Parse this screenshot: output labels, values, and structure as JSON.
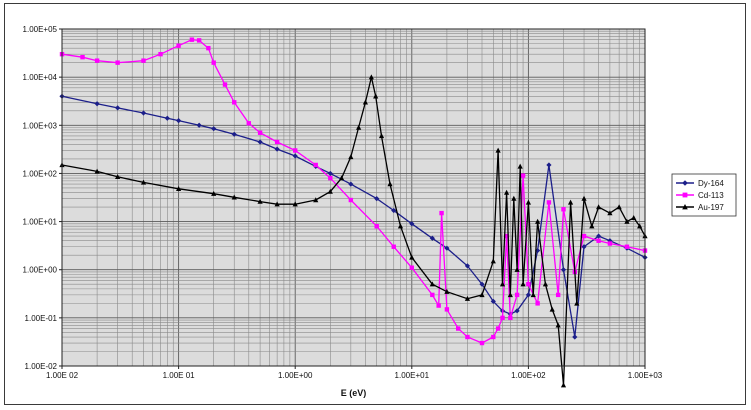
{
  "chart_data": {
    "type": "line",
    "title": "",
    "xlabel": "E (eV)",
    "ylabel": "",
    "x_scale": "log",
    "y_scale": "log",
    "xlim": [
      0.01,
      1000
    ],
    "ylim": [
      0.01,
      100000
    ],
    "grid": true,
    "legend_position": "right",
    "x_ticks": [
      "1.00E 02",
      "1.00E 01",
      "1.00E+00",
      "1.00E+01",
      "1.00E+02",
      "1.00E+03"
    ],
    "y_ticks": [
      "1.00E-02",
      "1.00E-01",
      "1.00E+00",
      "1.00E+01",
      "1.00E+02",
      "1.00E+03",
      "1.00E+04",
      "1.00E+05"
    ],
    "series": [
      {
        "name": "Dy-164",
        "color": "#1c1f8a",
        "marker": "diamond",
        "x": [
          0.01,
          0.02,
          0.03,
          0.05,
          0.08,
          0.1,
          0.15,
          0.2,
          0.3,
          0.5,
          0.7,
          1.0,
          1.5,
          2.0,
          3.0,
          5.0,
          7.0,
          10.0,
          15.0,
          20.0,
          30.0,
          40.0,
          50.0,
          60.0,
          70.0,
          80.0,
          100.0,
          120.0,
          150.0,
          200.0,
          250.0,
          300.0,
          400.0,
          500.0,
          700.0,
          1000.0
        ],
        "y": [
          4000,
          2800,
          2300,
          1800,
          1400,
          1250,
          1000,
          850,
          650,
          450,
          320,
          230,
          140,
          100,
          60,
          30,
          17,
          9,
          4.5,
          2.8,
          1.2,
          0.5,
          0.22,
          0.14,
          0.12,
          0.14,
          0.3,
          2.5,
          150,
          1.0,
          0.04,
          3.0,
          5.0,
          4.0,
          2.8,
          1.8
        ]
      },
      {
        "name": "Cd-113",
        "color": "#ff00ff",
        "marker": "square",
        "x": [
          0.01,
          0.015,
          0.02,
          0.03,
          0.05,
          0.07,
          0.1,
          0.13,
          0.15,
          0.18,
          0.2,
          0.25,
          0.3,
          0.4,
          0.5,
          0.7,
          1.0,
          1.5,
          2.0,
          3.0,
          5.0,
          7.0,
          10.0,
          15.0,
          17.0,
          18.0,
          20.0,
          25.0,
          30.0,
          40.0,
          50.0,
          55.0,
          60.0,
          65.0,
          70.0,
          80.0,
          90.0,
          100.0,
          120.0,
          150.0,
          180.0,
          200.0,
          250.0,
          300.0,
          400.0,
          500.0,
          700.0,
          1000.0
        ],
        "y": [
          30000,
          26000,
          22000,
          20000,
          22000,
          30000,
          45000,
          60000,
          58000,
          40000,
          20000,
          7000,
          3000,
          1100,
          700,
          450,
          300,
          150,
          80,
          28,
          8,
          3,
          1.1,
          0.3,
          0.18,
          15,
          0.15,
          0.06,
          0.04,
          0.03,
          0.04,
          0.06,
          0.1,
          5,
          0.1,
          0.3,
          90,
          0.5,
          0.2,
          25,
          0.3,
          18,
          0.9,
          5.0,
          4.0,
          3.5,
          3.0,
          2.5
        ]
      },
      {
        "name": "Au-197",
        "color": "#000000",
        "marker": "triangle",
        "x": [
          0.01,
          0.02,
          0.03,
          0.05,
          0.1,
          0.2,
          0.3,
          0.5,
          0.7,
          1.0,
          1.5,
          2.0,
          2.5,
          3.0,
          3.5,
          4.0,
          4.5,
          4.9,
          5.5,
          6.5,
          8.0,
          10.0,
          15.0,
          20.0,
          30.0,
          40.0,
          50.0,
          55.0,
          60.0,
          65.0,
          70.0,
          75.0,
          80.0,
          85.0,
          90.0,
          100.0,
          110.0,
          120.0,
          140.0,
          160.0,
          180.0,
          200.0,
          230.0,
          260.0,
          300.0,
          350.0,
          400.0,
          500.0,
          600.0,
          700.0,
          800.0,
          900.0,
          1000.0
        ],
        "y": [
          150,
          110,
          85,
          65,
          48,
          38,
          32,
          26,
          23,
          23,
          28,
          42,
          80,
          220,
          900,
          3000,
          10000,
          4000,
          600,
          60,
          8,
          1.8,
          0.5,
          0.35,
          0.25,
          0.3,
          1.5,
          300,
          0.5,
          40,
          0.3,
          30,
          1.0,
          140,
          0.5,
          25,
          0.3,
          10,
          0.5,
          0.15,
          0.07,
          0.004,
          25,
          0.2,
          30,
          8,
          20,
          15,
          20,
          10,
          12,
          8,
          5
        ]
      }
    ]
  }
}
